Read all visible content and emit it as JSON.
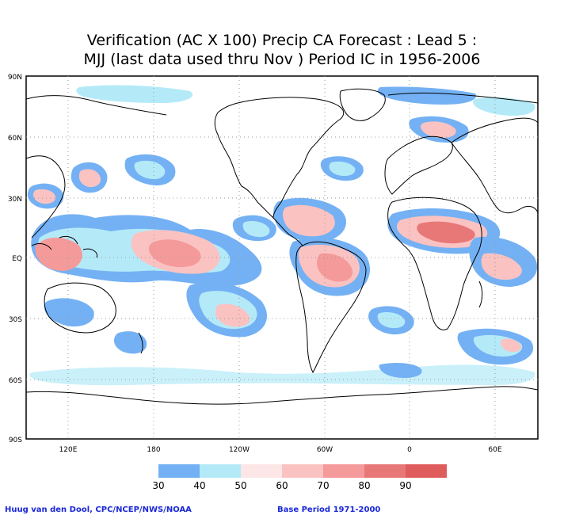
{
  "title": {
    "line1": "Verification (AC X 100) Precip CA Forecast : Lead 5 :",
    "line2": "MJJ (last data used thru Nov ) Period IC in 1956-2006"
  },
  "map": {
    "lat_labels": [
      "90N",
      "60N",
      "30N",
      "EQ",
      "30S",
      "60S",
      "90S"
    ],
    "lon_labels": [
      "120E",
      "180",
      "120W",
      "60W",
      "0",
      "60E"
    ]
  },
  "legend": {
    "colors": [
      "#74b1f4",
      "#b4eaf8",
      "#fde6e6",
      "#fbc2c2",
      "#f59a9a",
      "#e87878",
      "#df5c5c"
    ],
    "labels": [
      "30",
      "40",
      "50",
      "60",
      "70",
      "80",
      "90"
    ]
  },
  "credits": {
    "left": "Huug van den Dool, CPC/NCEP/NWS/NOAA",
    "right": "Base Period 1971-2000"
  },
  "contour_colors": {
    "c30": "#74b1f4",
    "c40": "#b4eaf8",
    "c50": "#fde6e6",
    "c60": "#fbc2c2",
    "c70": "#f59a9a",
    "c80": "#e87878"
  }
}
